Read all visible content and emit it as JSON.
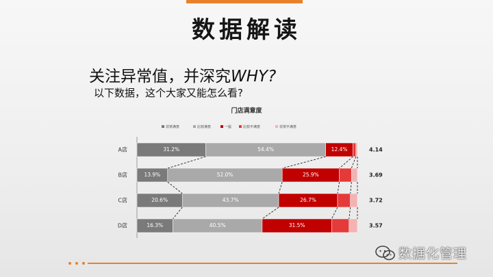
{
  "slide": {
    "title": "数据解读",
    "subtitle_cn": "关注异常值，并深究",
    "subtitle_em": "WHY?",
    "question": "以下数据，这个大家又能怎么看?"
  },
  "watermark": {
    "text": "数据化管理"
  },
  "colors": {
    "accent": "#e8822a",
    "seg": [
      "#7a7a7a",
      "#a9a9a9",
      "#c10000",
      "#e53a3a",
      "#f4b3b3"
    ]
  },
  "chart_data": {
    "type": "bar",
    "orientation": "horizontal",
    "stacked": true,
    "title": "门店满意度",
    "categories": [
      "A店",
      "B店",
      "C店",
      "D店"
    ],
    "series": [
      {
        "name": "非常满意",
        "values": [
          31.2,
          13.9,
          20.6,
          16.3
        ]
      },
      {
        "name": "比较满意",
        "values": [
          54.4,
          52.0,
          43.7,
          40.5
        ]
      },
      {
        "name": "一般",
        "values": [
          12.4,
          25.9,
          26.7,
          31.5
        ]
      },
      {
        "name": "比较不满意",
        "values": [
          1.3,
          5.5,
          5.8,
          7.9
        ]
      },
      {
        "name": "非常不满意",
        "values": [
          0.7,
          2.7,
          3.2,
          3.8
        ]
      }
    ],
    "data_labels": [
      [
        "31.2%",
        "54.4%",
        "12.4%"
      ],
      [
        "13.9%",
        "52.0%",
        "25.9%"
      ],
      [
        "20.6%",
        "43.7%",
        "26.7%"
      ],
      [
        "16.3%",
        "40.5%",
        "31.5%"
      ]
    ],
    "scores": [
      "4.14",
      "3.69",
      "3.72",
      "3.57"
    ],
    "legend_position": "top",
    "xlim": [
      0,
      100
    ],
    "grid": false
  }
}
